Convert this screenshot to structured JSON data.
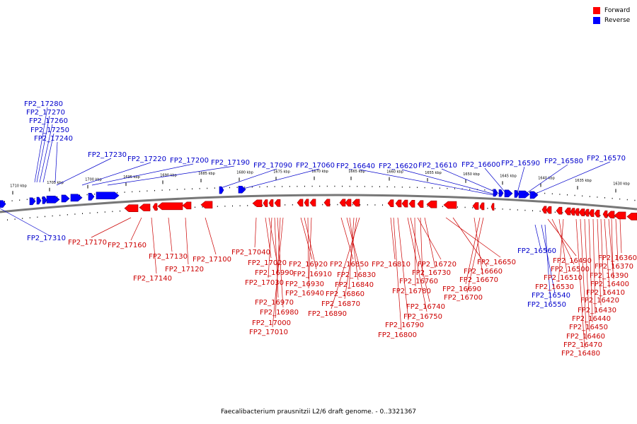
{
  "legend": {
    "forward": {
      "label": "Forward",
      "color": "#ff0000"
    },
    "reverse": {
      "label": "Reverse",
      "color": "#0000ff"
    }
  },
  "caption": "Faecalibacterium prausnitzii L2/6 draft genome. - 0..3321367",
  "colors": {
    "backbone": "#777777",
    "tick": "#000000",
    "leader_forward": "#cc0000",
    "leader_reverse": "#0000cc",
    "label_forward": "#cc0000",
    "label_reverse": "#0000cc"
  },
  "scale_labels": [
    "1710 kbp",
    "1705 kbp",
    "1700 kbp",
    "1695 kbp",
    "1690 kbp",
    "1685 kbp",
    "1680 kbp",
    "1675 kbp",
    "1670 kbp",
    "1665 kbp",
    "1660 kbp",
    "1655 kbp",
    "1650 kbp",
    "1645 kbp",
    "1640 kbp",
    "1635 kbp",
    "1630 kbp"
  ],
  "reverse_labels": [
    "FP2_17280",
    "FP2_17270",
    "FP2_17260",
    "FP2_17250",
    "FP2_17240",
    "FP2_17230",
    "FP2_17220",
    "FP2_17200",
    "FP2_17190",
    "FP2_17090",
    "FP2_17060",
    "FP2_16640",
    "FP2_16620",
    "FP2_16610",
    "FP2_16600",
    "FP2_16590",
    "FP2_16580",
    "FP2_16570",
    "FP2_17310",
    "FP2_16560",
    "FP2_16540",
    "FP2_16550"
  ],
  "forward_labels": [
    "FP2_17170",
    "FP2_17160",
    "FP2_17130",
    "FP2_17120",
    "FP2_17140",
    "FP2_17100",
    "FP2_17040",
    "FP2_17020",
    "FP2_16990",
    "FP2_17030",
    "FP2_16970",
    "FP2_16980",
    "FP2_17000",
    "FP2_17010",
    "FP2_16920",
    "FP2_16910",
    "FP2_16930",
    "FP2_16940",
    "FP2_16850",
    "FP2_16830",
    "FP2_16840",
    "FP2_16860",
    "FP2_16870",
    "FP2_16890",
    "FP2_16810",
    "FP2_16720",
    "FP2_16730",
    "FP2_16760",
    "FP2_16780",
    "FP2_16740",
    "FP2_16750",
    "FP2_16790",
    "FP2_16800",
    "FP2_16650",
    "FP2_16660",
    "FP2_16670",
    "FP2_16690",
    "FP2_16700",
    "FP2_16490",
    "FP2_16500",
    "FP2_16510",
    "FP2_16530",
    "FP2_16360",
    "FP2_16370",
    "FP2_16390",
    "FP2_16400",
    "FP2_16410",
    "FP2_16420",
    "FP2_16430",
    "FP2_16440",
    "FP2_16450",
    "FP2_16460",
    "FP2_16470",
    "FP2_16480"
  ]
}
